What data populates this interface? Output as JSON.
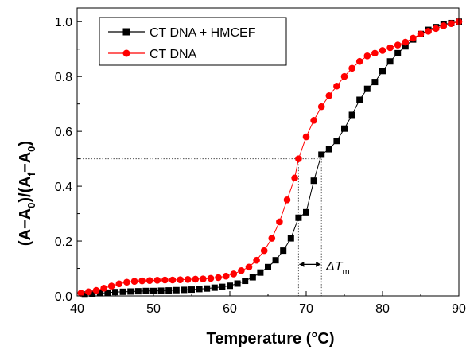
{
  "chart_data": {
    "type": "scatter",
    "xlabel": "Temperature (°C)",
    "ylabel_parts": [
      "(A−A",
      "0",
      ")/(A",
      "f",
      "−A",
      "0",
      ")"
    ],
    "xlim": [
      40,
      90
    ],
    "ylim": [
      0,
      1.05
    ],
    "xticks": [
      "40",
      "50",
      "60",
      "70",
      "80",
      "90"
    ],
    "yticks": [
      "0.0",
      "0.2",
      "0.4",
      "0.6",
      "0.8",
      "1.0"
    ],
    "grid": false,
    "legend_position": "top-left",
    "series": [
      {
        "name": "CT DNA + HMCEF",
        "color": "#000000",
        "marker": "square",
        "x": [
          41,
          42,
          43,
          44,
          45,
          46,
          47,
          48,
          49,
          50,
          51,
          52,
          53,
          54,
          55,
          56,
          57,
          58,
          59,
          60,
          61,
          62,
          63,
          64,
          65,
          66,
          67,
          68,
          69,
          70,
          71,
          72,
          73,
          74,
          75,
          76,
          77,
          78,
          79,
          80,
          81,
          82,
          83,
          84,
          85,
          86,
          87,
          88,
          89,
          90
        ],
        "y": [
          0.005,
          0.008,
          0.01,
          0.012,
          0.014,
          0.015,
          0.016,
          0.017,
          0.018,
          0.018,
          0.019,
          0.02,
          0.021,
          0.022,
          0.023,
          0.025,
          0.027,
          0.03,
          0.033,
          0.037,
          0.045,
          0.055,
          0.068,
          0.085,
          0.105,
          0.13,
          0.165,
          0.21,
          0.285,
          0.305,
          0.42,
          0.515,
          0.535,
          0.565,
          0.61,
          0.66,
          0.715,
          0.755,
          0.78,
          0.82,
          0.855,
          0.885,
          0.91,
          0.935,
          0.955,
          0.97,
          0.98,
          0.99,
          0.995,
          1.0
        ]
      },
      {
        "name": "CT DNA",
        "color": "#ff0000",
        "marker": "circle",
        "x": [
          40.5,
          41.5,
          42.5,
          43.5,
          44.5,
          45.5,
          46.5,
          47.5,
          48.5,
          49.5,
          50.5,
          51.5,
          52.5,
          53.5,
          54.5,
          55.5,
          56.5,
          57.5,
          58.5,
          59.5,
          60.5,
          61.5,
          62.5,
          63.5,
          64.5,
          65.5,
          66.5,
          67.5,
          68.5,
          69,
          70,
          71,
          72,
          73,
          74,
          75,
          76,
          77,
          78,
          79,
          80,
          81,
          82,
          83,
          84,
          85,
          86,
          87,
          88,
          89,
          90
        ],
        "y": [
          0.01,
          0.015,
          0.02,
          0.028,
          0.036,
          0.044,
          0.05,
          0.053,
          0.055,
          0.056,
          0.057,
          0.058,
          0.058,
          0.059,
          0.06,
          0.061,
          0.062,
          0.064,
          0.067,
          0.072,
          0.08,
          0.092,
          0.105,
          0.13,
          0.165,
          0.21,
          0.27,
          0.35,
          0.43,
          0.5,
          0.58,
          0.64,
          0.69,
          0.73,
          0.765,
          0.8,
          0.83,
          0.855,
          0.875,
          0.885,
          0.895,
          0.905,
          0.915,
          0.925,
          0.94,
          0.955,
          0.965,
          0.975,
          0.985,
          0.993,
          1.0
        ]
      }
    ],
    "reference_line": {
      "y": 0.5,
      "x1": 69,
      "x2": 72
    },
    "annotation": {
      "text": "ΔT",
      "subscript": "m"
    }
  }
}
